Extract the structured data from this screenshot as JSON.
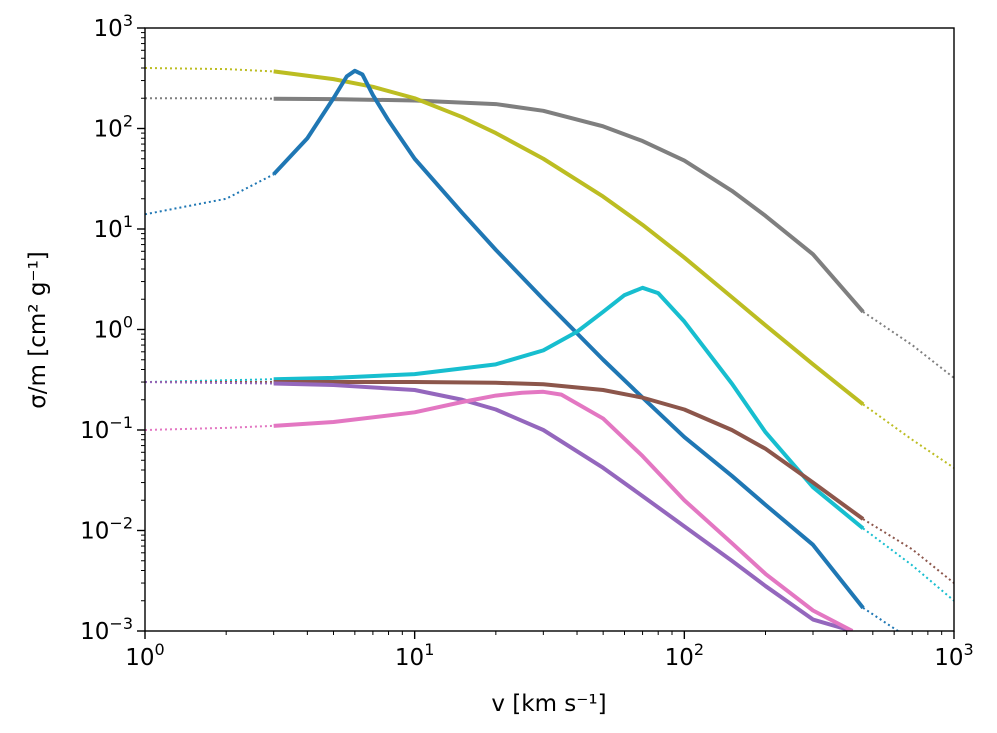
{
  "chart_data": {
    "type": "line",
    "title": "",
    "xlabel": "v [km s⁻¹]",
    "ylabel": "σ/m  [cm² g⁻¹]",
    "xscale": "log",
    "yscale": "log",
    "xlim": [
      1,
      1000
    ],
    "ylim": [
      0.001,
      1000
    ],
    "grid": false,
    "legend": "none",
    "x_ticks": [
      {
        "value": 1,
        "base": "10",
        "exp": "0"
      },
      {
        "value": 10,
        "base": "10",
        "exp": "1"
      },
      {
        "value": 100,
        "base": "10",
        "exp": "2"
      },
      {
        "value": 1000,
        "base": "10",
        "exp": "3"
      }
    ],
    "y_ticks": [
      {
        "value": 0.001,
        "base": "10",
        "exp": "−3"
      },
      {
        "value": 0.01,
        "base": "10",
        "exp": "−2"
      },
      {
        "value": 0.1,
        "base": "10",
        "exp": "−1"
      },
      {
        "value": 1,
        "base": "10",
        "exp": "0"
      },
      {
        "value": 10,
        "base": "10",
        "exp": "1"
      },
      {
        "value": 100,
        "base": "10",
        "exp": "2"
      },
      {
        "value": 1000,
        "base": "10",
        "exp": "3"
      }
    ],
    "solid_range": [
      3,
      460
    ],
    "series": [
      {
        "color": "#7f7f7f",
        "points": [
          [
            1,
            200
          ],
          [
            2,
            200
          ],
          [
            3,
            198
          ],
          [
            5,
            196
          ],
          [
            10,
            190
          ],
          [
            20,
            175
          ],
          [
            30,
            150
          ],
          [
            50,
            105
          ],
          [
            70,
            75
          ],
          [
            100,
            48
          ],
          [
            150,
            24
          ],
          [
            200,
            13.5
          ],
          [
            300,
            5.6
          ],
          [
            460,
            1.5
          ],
          [
            700,
            0.7
          ],
          [
            1000,
            0.33
          ]
        ]
      },
      {
        "color": "#bcbd22",
        "points": [
          [
            1,
            400
          ],
          [
            2,
            390
          ],
          [
            3,
            370
          ],
          [
            5,
            310
          ],
          [
            7,
            260
          ],
          [
            10,
            200
          ],
          [
            15,
            130
          ],
          [
            20,
            90
          ],
          [
            30,
            50
          ],
          [
            50,
            21
          ],
          [
            70,
            11
          ],
          [
            100,
            5.2
          ],
          [
            150,
            2.1
          ],
          [
            200,
            1.1
          ],
          [
            300,
            0.45
          ],
          [
            460,
            0.18
          ],
          [
            700,
            0.08
          ],
          [
            1000,
            0.042
          ]
        ]
      },
      {
        "color": "#1f77b4",
        "points": [
          [
            1,
            14
          ],
          [
            2,
            20
          ],
          [
            3,
            35
          ],
          [
            4,
            80
          ],
          [
            5,
            200
          ],
          [
            5.6,
            330
          ],
          [
            6,
            375
          ],
          [
            6.4,
            345
          ],
          [
            7,
            215
          ],
          [
            8,
            120
          ],
          [
            10,
            50
          ],
          [
            15,
            14.5
          ],
          [
            20,
            6.2
          ],
          [
            30,
            2.0
          ],
          [
            50,
            0.5
          ],
          [
            70,
            0.21
          ],
          [
            100,
            0.085
          ],
          [
            150,
            0.035
          ],
          [
            200,
            0.018
          ],
          [
            300,
            0.0072
          ],
          [
            460,
            0.0017
          ],
          [
            620,
            0.001
          ]
        ]
      },
      {
        "color": "#17becf",
        "points": [
          [
            1,
            0.3
          ],
          [
            3,
            0.32
          ],
          [
            5,
            0.33
          ],
          [
            10,
            0.36
          ],
          [
            20,
            0.45
          ],
          [
            30,
            0.62
          ],
          [
            40,
            0.95
          ],
          [
            50,
            1.5
          ],
          [
            60,
            2.2
          ],
          [
            70,
            2.6
          ],
          [
            80,
            2.3
          ],
          [
            100,
            1.2
          ],
          [
            150,
            0.29
          ],
          [
            200,
            0.095
          ],
          [
            300,
            0.027
          ],
          [
            460,
            0.0105
          ],
          [
            700,
            0.0045
          ],
          [
            1000,
            0.002
          ]
        ]
      },
      {
        "color": "#8c564b",
        "points": [
          [
            1,
            0.3
          ],
          [
            3,
            0.3
          ],
          [
            5,
            0.3
          ],
          [
            10,
            0.3
          ],
          [
            20,
            0.295
          ],
          [
            30,
            0.285
          ],
          [
            50,
            0.25
          ],
          [
            70,
            0.21
          ],
          [
            100,
            0.16
          ],
          [
            150,
            0.1
          ],
          [
            200,
            0.065
          ],
          [
            300,
            0.03
          ],
          [
            460,
            0.013
          ],
          [
            700,
            0.0065
          ],
          [
            1000,
            0.003
          ]
        ]
      },
      {
        "color": "#9467bd",
        "points": [
          [
            1,
            0.3
          ],
          [
            3,
            0.29
          ],
          [
            5,
            0.28
          ],
          [
            10,
            0.25
          ],
          [
            15,
            0.2
          ],
          [
            20,
            0.16
          ],
          [
            30,
            0.1
          ],
          [
            50,
            0.042
          ],
          [
            70,
            0.022
          ],
          [
            100,
            0.011
          ],
          [
            150,
            0.005
          ],
          [
            200,
            0.0028
          ],
          [
            300,
            0.0013
          ],
          [
            420,
            0.001
          ]
        ]
      },
      {
        "color": "#e377c2",
        "points": [
          [
            1,
            0.1
          ],
          [
            2,
            0.105
          ],
          [
            3,
            0.11
          ],
          [
            5,
            0.12
          ],
          [
            10,
            0.15
          ],
          [
            15,
            0.19
          ],
          [
            20,
            0.22
          ],
          [
            25,
            0.235
          ],
          [
            30,
            0.24
          ],
          [
            35,
            0.225
          ],
          [
            50,
            0.13
          ],
          [
            70,
            0.055
          ],
          [
            100,
            0.02
          ],
          [
            150,
            0.0075
          ],
          [
            200,
            0.0037
          ],
          [
            300,
            0.0016
          ],
          [
            420,
            0.001
          ]
        ]
      }
    ]
  }
}
